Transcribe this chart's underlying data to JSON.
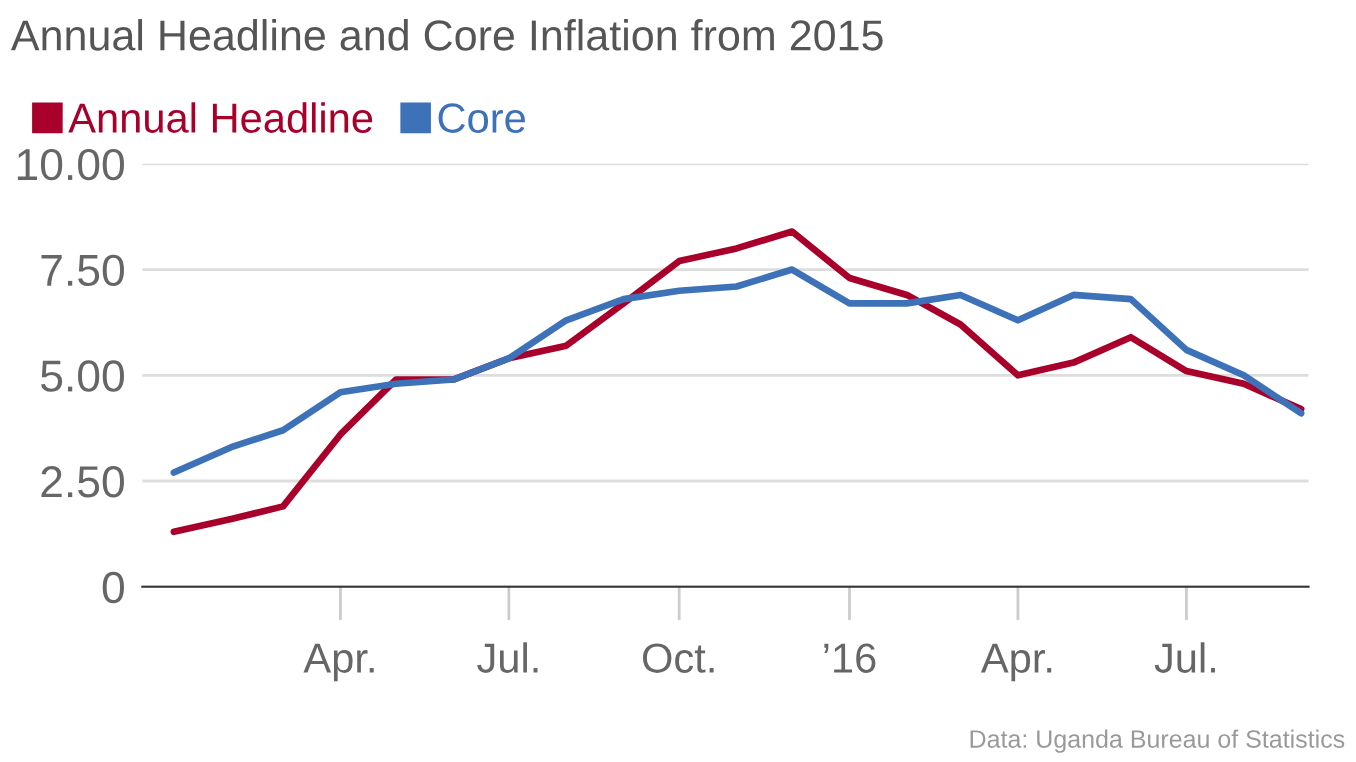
{
  "chart_data": {
    "type": "line",
    "title": "Annual Headline and Core Inflation from 2015",
    "x": [
      "2015-01",
      "2015-02",
      "2015-03",
      "2015-04",
      "2015-05",
      "2015-06",
      "2015-07",
      "2015-08",
      "2015-09",
      "2015-10",
      "2015-11",
      "2015-12",
      "2016-01",
      "2016-02",
      "2016-03",
      "2016-04",
      "2016-05",
      "2016-06",
      "2016-07",
      "2016-08",
      "2016-09"
    ],
    "series": [
      {
        "name": "Annual Headline",
        "color": "#a8002a",
        "values": [
          1.3,
          1.6,
          1.9,
          3.6,
          4.9,
          4.9,
          5.4,
          5.7,
          6.7,
          7.7,
          8.0,
          8.4,
          7.3,
          6.9,
          6.2,
          5.0,
          5.3,
          5.9,
          5.1,
          4.8,
          4.2
        ]
      },
      {
        "name": "Core",
        "color": "#3d72b8",
        "values": [
          2.7,
          3.3,
          3.7,
          4.6,
          4.8,
          4.9,
          5.4,
          6.3,
          6.8,
          7.0,
          7.1,
          7.5,
          6.7,
          6.7,
          6.9,
          6.3,
          6.9,
          6.8,
          5.6,
          5.0,
          4.1
        ]
      }
    ],
    "xlim": [
      "2014-12-15",
      "2016-09-05"
    ],
    "xticks": [
      {
        "value": "2015-04",
        "label": "Apr."
      },
      {
        "value": "2015-07",
        "label": "Jul."
      },
      {
        "value": "2015-10",
        "label": "Oct."
      },
      {
        "value": "2016-01",
        "label": "’16"
      },
      {
        "value": "2016-04",
        "label": "Apr."
      },
      {
        "value": "2016-07",
        "label": "Jul."
      }
    ],
    "ylim": [
      0,
      10
    ],
    "yticks": [
      0,
      {
        "value": 2.5,
        "label": "2.50"
      },
      {
        "value": 5,
        "label": "5.00"
      },
      {
        "value": 7.5,
        "label": "7.50"
      },
      {
        "value": 10,
        "label": "10.00"
      }
    ],
    "grid": "y",
    "legend": "top left",
    "marker": "none",
    "line_style": "solid",
    "annotations": [
      "Data: Uganda Bureau of Statistics"
    ]
  }
}
